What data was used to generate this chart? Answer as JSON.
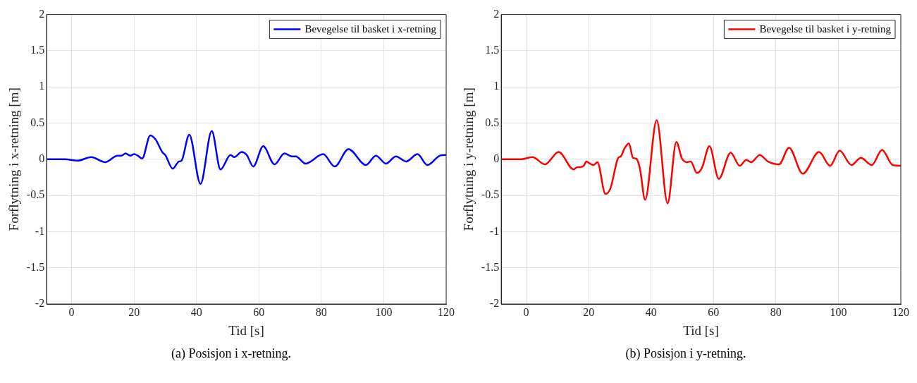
{
  "chart_data": [
    {
      "type": "line",
      "xlabel": "Tid [s]",
      "ylabel": "Forflytning i x-retning [m]",
      "xlim": [
        -8,
        120
      ],
      "ylim": [
        -2,
        2
      ],
      "xticks": [
        0,
        20,
        40,
        60,
        80,
        100,
        120
      ],
      "yticks": [
        -2,
        -1.5,
        -1,
        -0.5,
        0,
        0.5,
        1,
        1.5,
        2
      ],
      "grid": true,
      "legend": "top right",
      "annotations": [
        "(a) Posisjon i x-retning."
      ],
      "series": [
        {
          "name": "Bevegelse til basket i x-retning",
          "color": "#0000ff",
          "x": [
            -8,
            -2.2,
            1.9,
            6.3,
            10.8,
            14.7,
            15.9,
            17.3,
            18.8,
            20,
            21.2,
            22.6,
            25.2,
            26.8,
            29.2,
            30,
            32.4,
            34.4,
            35.2,
            37.7,
            41.3,
            44.9,
            47.7,
            50.9,
            52.1,
            54.5,
            56.1,
            58.2,
            61.4,
            65,
            68.2,
            70.6,
            71.8,
            75,
            80.6,
            84.3,
            88.7,
            94.3,
            97.5,
            100.7,
            103.9,
            107.2,
            110.8,
            114,
            118,
            120
          ],
          "values": [
            0,
            0,
            -0.02,
            0.03,
            -0.04,
            0.05,
            0.05,
            0.08,
            0.05,
            0.07,
            0.05,
            0.01,
            0.33,
            0.28,
            0.09,
            0.06,
            -0.13,
            -0.03,
            -0.02,
            0.34,
            -0.34,
            0.39,
            -0.14,
            0.06,
            0.03,
            0.1,
            0.06,
            -0.1,
            0.18,
            -0.07,
            0.08,
            0.04,
            0.04,
            -0.06,
            0.07,
            -0.1,
            0.14,
            -0.08,
            0.05,
            -0.06,
            0.04,
            -0.03,
            0.07,
            -0.08,
            0.05,
            0.06
          ]
        }
      ]
    },
    {
      "type": "line",
      "xlabel": "Tid [s]",
      "ylabel": "Forflytning i y-retning [m]",
      "xlim": [
        -8,
        120
      ],
      "ylim": [
        -2,
        2
      ],
      "xticks": [
        0,
        20,
        40,
        60,
        80,
        100,
        120
      ],
      "yticks": [
        -2,
        -1.5,
        -1,
        -0.5,
        0,
        0.5,
        1,
        1.5,
        2
      ],
      "grid": true,
      "legend": "top right",
      "annotations": [
        "(b) Posisjon i y-retning."
      ],
      "series": [
        {
          "name": "Bevegelse til basket i y-retning",
          "color": "#ff0000",
          "x": [
            -8,
            -1.6,
            2,
            6,
            10.4,
            15.2,
            16.4,
            17.2,
            18.4,
            19.3,
            20.4,
            21.6,
            22.8,
            25.4,
            27,
            29.5,
            30.3,
            31.5,
            32.9,
            34.2,
            35.2,
            36.4,
            38.1,
            41.8,
            45.3,
            48.1,
            49.9,
            51.5,
            52.7,
            54.7,
            56.3,
            58.7,
            61.7,
            65.5,
            68.4,
            70.5,
            72.1,
            74.8,
            77.4,
            81,
            84.2,
            88.6,
            93.8,
            97.4,
            100.4,
            104.2,
            107.2,
            110.7,
            114,
            117.4,
            120
          ],
          "values": [
            0,
            0,
            0.03,
            -0.07,
            0.1,
            -0.14,
            -0.11,
            -0.11,
            -0.09,
            -0.03,
            -0.06,
            -0.08,
            -0.04,
            -0.48,
            -0.4,
            0.02,
            0.04,
            0.15,
            0.22,
            0.02,
            0.01,
            -0.12,
            -0.56,
            0.54,
            -0.61,
            0.24,
            0.01,
            -0.04,
            -0.03,
            -0.19,
            -0.12,
            0.18,
            -0.27,
            0.09,
            -0.09,
            -0.01,
            -0.04,
            0.06,
            -0.03,
            -0.07,
            0.16,
            -0.2,
            0.1,
            -0.09,
            0.12,
            -0.08,
            0.02,
            -0.08,
            0.13,
            -0.08,
            -0.09
          ]
        }
      ]
    }
  ]
}
